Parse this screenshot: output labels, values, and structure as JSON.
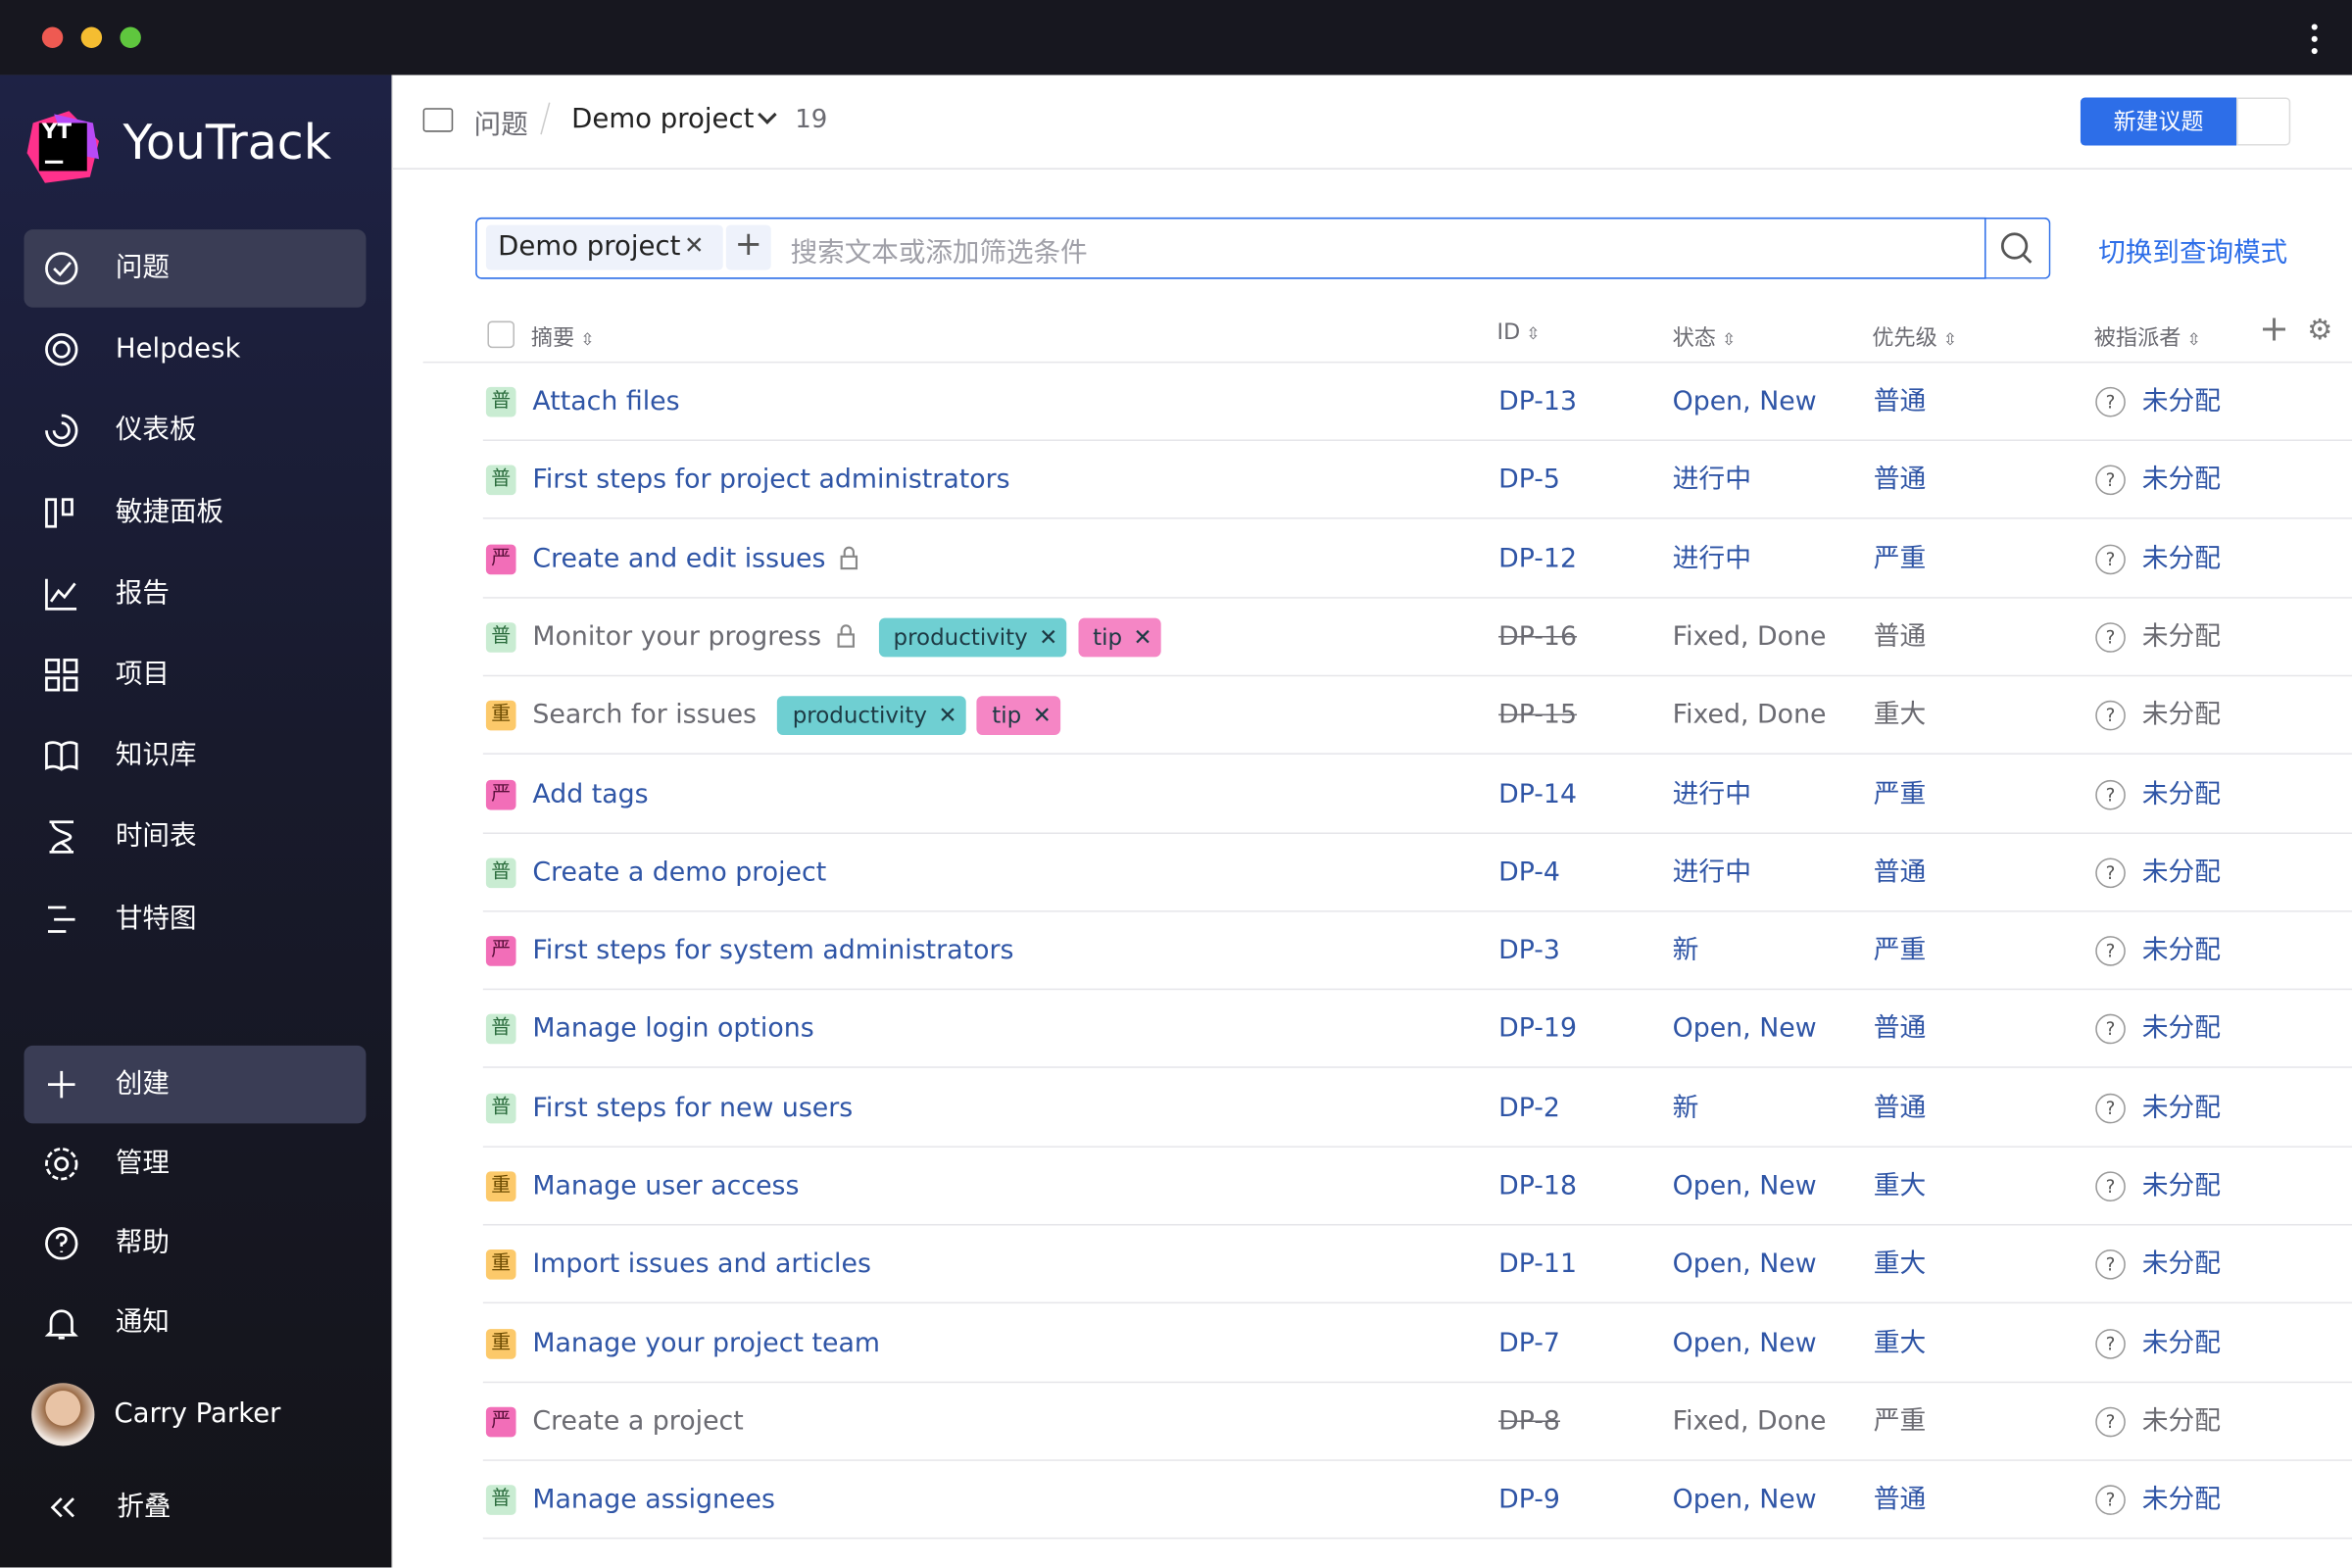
{
  "sidebar": {
    "logo": "YT",
    "brand": "YouTrack",
    "nav": [
      "问题",
      "Helpdesk",
      "仪表板",
      "敏捷面板",
      "报告",
      "项目",
      "知识库",
      "时间表",
      "甘特图"
    ],
    "active": 0,
    "bottom": [
      "创建",
      "管理",
      "帮助",
      "通知"
    ],
    "user": "Carry Parker",
    "collapse": "折叠"
  },
  "header": {
    "breadcrumb": [
      "问题",
      "Demo project"
    ],
    "count": 19,
    "new_button": "新建议题"
  },
  "search": {
    "chip": "Demo project",
    "placeholder": "搜索文本或添加筛选条件",
    "query_mode": "切换到查询模式"
  },
  "table": {
    "columns": [
      "摘要",
      "ID",
      "状态",
      "优先级",
      "被指派者"
    ],
    "rows": [
      {
        "badge": "普",
        "summary": "Attach files",
        "locked": false,
        "tags": [],
        "id": "DP-13",
        "state": "Open, New",
        "priority": "普通",
        "assignee": "未分配",
        "resolved": false
      },
      {
        "badge": "普",
        "summary": "First steps for project administrators",
        "locked": false,
        "tags": [],
        "id": "DP-5",
        "state": "进行中",
        "priority": "普通",
        "assignee": "未分配",
        "resolved": false
      },
      {
        "badge": "严",
        "summary": "Create and edit issues",
        "locked": true,
        "tags": [],
        "id": "DP-12",
        "state": "进行中",
        "priority": "严重",
        "assignee": "未分配",
        "resolved": false
      },
      {
        "badge": "普",
        "summary": "Monitor your progress",
        "locked": true,
        "tags": [
          "productivity",
          "tip"
        ],
        "id": "DP-16",
        "state": "Fixed, Done",
        "priority": "普通",
        "assignee": "未分配",
        "resolved": true
      },
      {
        "badge": "重",
        "summary": "Search for issues",
        "locked": false,
        "tags": [
          "productivity",
          "tip"
        ],
        "id": "DP-15",
        "state": "Fixed, Done",
        "priority": "重大",
        "assignee": "未分配",
        "resolved": true
      },
      {
        "badge": "严",
        "summary": "Add tags",
        "locked": false,
        "tags": [],
        "id": "DP-14",
        "state": "进行中",
        "priority": "严重",
        "assignee": "未分配",
        "resolved": false
      },
      {
        "badge": "普",
        "summary": "Create a demo project",
        "locked": false,
        "tags": [],
        "id": "DP-4",
        "state": "进行中",
        "priority": "普通",
        "assignee": "未分配",
        "resolved": false
      },
      {
        "badge": "严",
        "summary": "First steps for system administrators",
        "locked": false,
        "tags": [],
        "id": "DP-3",
        "state": "新",
        "priority": "严重",
        "assignee": "未分配",
        "resolved": false
      },
      {
        "badge": "普",
        "summary": "Manage login options",
        "locked": false,
        "tags": [],
        "id": "DP-19",
        "state": "Open, New",
        "priority": "普通",
        "assignee": "未分配",
        "resolved": false
      },
      {
        "badge": "普",
        "summary": "First steps for new users",
        "locked": false,
        "tags": [],
        "id": "DP-2",
        "state": "新",
        "priority": "普通",
        "assignee": "未分配",
        "resolved": false
      },
      {
        "badge": "重",
        "summary": "Manage user access",
        "locked": false,
        "tags": [],
        "id": "DP-18",
        "state": "Open, New",
        "priority": "重大",
        "assignee": "未分配",
        "resolved": false
      },
      {
        "badge": "重",
        "summary": "Import issues and articles",
        "locked": false,
        "tags": [],
        "id": "DP-11",
        "state": "Open, New",
        "priority": "重大",
        "assignee": "未分配",
        "resolved": false
      },
      {
        "badge": "重",
        "summary": "Manage your project team",
        "locked": false,
        "tags": [],
        "id": "DP-7",
        "state": "Open, New",
        "priority": "重大",
        "assignee": "未分配",
        "resolved": false
      },
      {
        "badge": "严",
        "summary": "Create a project",
        "locked": false,
        "tags": [],
        "id": "DP-8",
        "state": "Fixed, Done",
        "priority": "严重",
        "assignee": "未分配",
        "resolved": true
      },
      {
        "badge": "普",
        "summary": "Manage assignees",
        "locked": false,
        "tags": [],
        "id": "DP-9",
        "state": "Open, New",
        "priority": "普通",
        "assignee": "未分配",
        "resolved": false
      }
    ]
  }
}
